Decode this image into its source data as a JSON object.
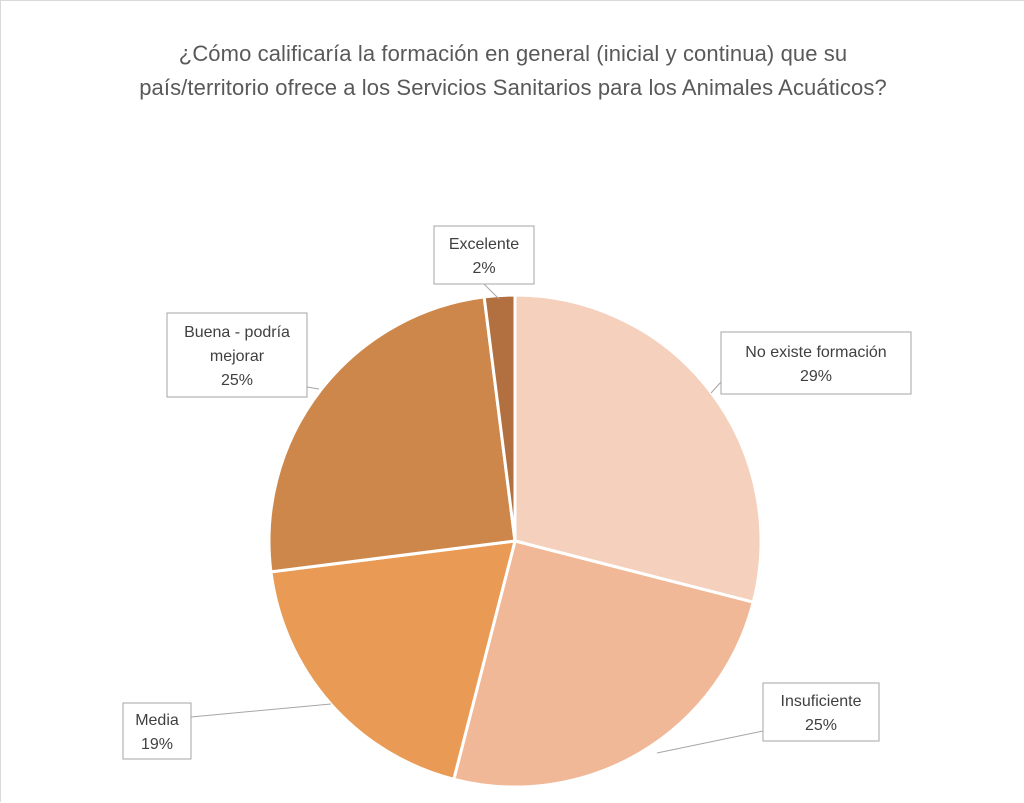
{
  "chart_data": {
    "type": "pie",
    "title": "¿Cómo calificaría la formación en general (inicial y continua) que su país/territorio ofrece a los Servicios Sanitarios para los Animales Acuáticos?",
    "title_lines": [
      "¿Cómo calificaría la formación en general (inicial y continua) que su",
      "país/territorio ofrece a los Servicios Sanitarios para los Animales Acuáticos?"
    ],
    "start_angle_deg": 0,
    "direction": "clockwise",
    "slices": [
      {
        "label": "No existe formación",
        "value": 29,
        "value_label": "29%",
        "color": "#F5D0BC"
      },
      {
        "label": "Insuficiente",
        "value": 25,
        "value_label": "25%",
        "color": "#F0B896"
      },
      {
        "label": "Media",
        "value": 19,
        "value_label": "19%",
        "color": "#E99B56"
      },
      {
        "label": "Buena - podría mejorar",
        "label_lines": [
          "Buena - podría",
          "mejorar"
        ],
        "value": 25,
        "value_label": "25%",
        "color": "#CE874A"
      },
      {
        "label": "Excelente",
        "value": 2,
        "value_label": "2%",
        "color": "#B27040"
      }
    ]
  }
}
